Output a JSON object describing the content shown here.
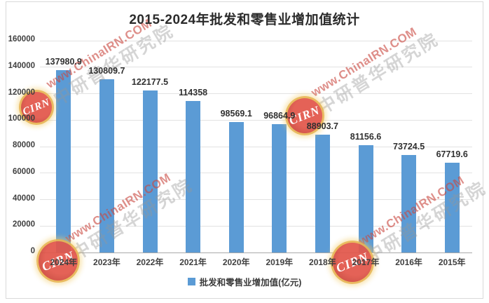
{
  "chart_data": {
    "type": "bar",
    "title": "2015-2024年批发和零售业增加值统计",
    "categories": [
      "2024年",
      "2023年",
      "2022年",
      "2021年",
      "2020年",
      "2019年",
      "2018年",
      "2017年",
      "2016年",
      "2015年"
    ],
    "values": [
      137980.9,
      130809.7,
      122177.5,
      114358,
      98569.1,
      96864.9,
      88903.7,
      81156.6,
      73724.5,
      67719.6
    ],
    "value_labels": [
      "137980.9",
      "130809.7",
      "122177.5",
      "114358",
      "98569.1",
      "96864.9",
      "88903.7",
      "81156.6",
      "73724.5",
      "67719.6"
    ],
    "series_name": "批发和零售业增加值(亿元)",
    "xlabel": "",
    "ylabel": "",
    "ylim": [
      0,
      160000
    ],
    "ytick_step": 20000,
    "yticks": [
      "0",
      "20000",
      "40000",
      "60000",
      "80000",
      "100000",
      "120000",
      "140000",
      "160000"
    ],
    "grid": true,
    "legend_position": "bottom",
    "bar_color": "#5B9BD5"
  },
  "legend": {
    "label": "批发和零售业增加值(亿元)",
    "marker_color": "#5B9BD5"
  },
  "watermark": {
    "logo_text": "CIRN",
    "url_text": "www.ChinaIRN.COM",
    "org_text": "中研普华研究院",
    "red_color": "#C9493F",
    "gray_color": "#969696"
  }
}
